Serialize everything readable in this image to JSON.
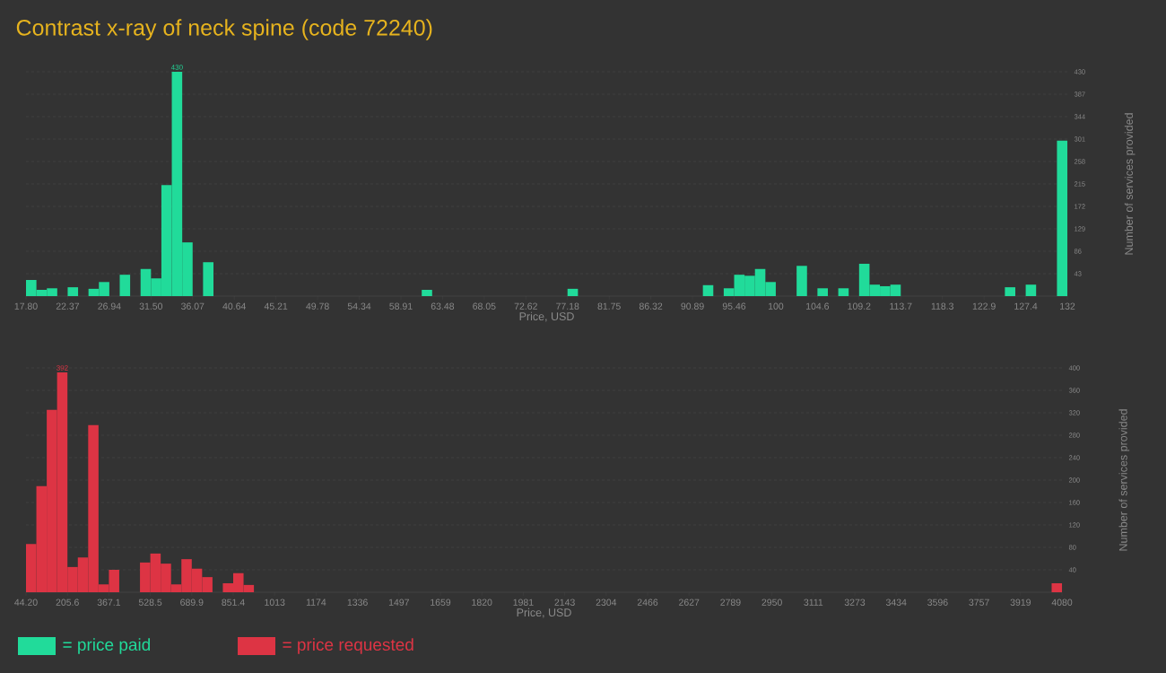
{
  "chart_data": [
    {
      "type": "histogram",
      "title": "Contrast x-ray of neck spine (code 72240)",
      "xlabel": "Price, USD",
      "ylabel": "Number of services provided",
      "bins": [
        17.8,
        18.942,
        20.084,
        21.226,
        22.368,
        23.51,
        24.652,
        25.794,
        26.936,
        28.078,
        29.22,
        30.362,
        31.504,
        32.646,
        33.788,
        34.93,
        36.072,
        37.214,
        38.356,
        39.498,
        40.64,
        41.782,
        42.924,
        44.066,
        45.208,
        46.35,
        47.492,
        48.634,
        49.776,
        50.918,
        52.06,
        53.202,
        54.344,
        55.486,
        56.628,
        57.77,
        58.912,
        60.054,
        61.196,
        62.338,
        63.48,
        64.622,
        65.764,
        66.906,
        68.048,
        69.19,
        70.332,
        71.474,
        72.616,
        73.758,
        74.9,
        76.042,
        77.184,
        78.326,
        79.468,
        80.61,
        81.752,
        82.894,
        84.036,
        85.178,
        86.32,
        87.462,
        88.604,
        89.746,
        90.888,
        92.03,
        93.172,
        94.314,
        95.456,
        96.598,
        97.74,
        98.882,
        100.024,
        101.166,
        102.308,
        103.45,
        104.592,
        105.734,
        106.876,
        108.018,
        109.16,
        110.302,
        111.444,
        112.586,
        113.728,
        114.87,
        116.012,
        117.154,
        118.296,
        119.438,
        120.58,
        121.722,
        122.864,
        124.006,
        125.148,
        126.29,
        127.432,
        128.574,
        129.716,
        130.858,
        132
      ],
      "series": [
        {
          "name": "= price paid",
          "color": "#21db9a",
          "values": [
            31,
            12,
            15,
            0,
            17,
            0,
            14,
            27,
            0,
            41,
            0,
            52,
            34,
            213,
            430,
            103,
            0,
            65,
            0,
            0,
            0,
            0,
            0,
            0,
            0,
            0,
            0,
            0,
            0,
            0,
            0,
            0,
            0,
            0,
            0,
            0,
            0,
            0,
            12,
            0,
            0,
            0,
            0,
            0,
            0,
            0,
            0,
            0,
            0,
            0,
            0,
            0,
            14,
            0,
            0,
            0,
            0,
            0,
            0,
            0,
            0,
            0,
            0,
            0,
            0,
            21,
            0,
            15,
            41,
            39,
            52,
            27,
            0,
            0,
            58,
            0,
            15,
            0,
            15,
            0,
            62,
            22,
            19,
            22,
            0,
            0,
            0,
            0,
            0,
            0,
            0,
            0,
            0,
            0,
            17,
            0,
            22,
            0,
            0,
            298
          ],
          "value_labels": [
            null,
            null,
            null,
            null,
            null,
            null,
            null,
            null,
            null,
            null,
            null,
            null,
            null,
            null,
            "430",
            null,
            null,
            null,
            null,
            null,
            null,
            null,
            null,
            null,
            null,
            null,
            null,
            null,
            null,
            null,
            null,
            null,
            null,
            null,
            null,
            null,
            null,
            null,
            null,
            null,
            null,
            null,
            null,
            null,
            null,
            null,
            null,
            null,
            null,
            null,
            null,
            null,
            null,
            null,
            null,
            null,
            null,
            null,
            null,
            null,
            null,
            null,
            null,
            null,
            null,
            null,
            null,
            null,
            null,
            null,
            null,
            null,
            null,
            null,
            null,
            null,
            null,
            null,
            null,
            null,
            null,
            null,
            null,
            null,
            null,
            null,
            null,
            null,
            null,
            null,
            null,
            null,
            null,
            null,
            null,
            null,
            null,
            null,
            null,
            null
          ]
        }
      ],
      "xlim": [
        17.8,
        132
      ],
      "xticks": [
        {
          "value": 17.8,
          "label": "17.80"
        },
        {
          "value": 22.368,
          "label": "22.37"
        },
        {
          "value": 26.936,
          "label": "26.94"
        },
        {
          "value": 31.504,
          "label": "31.50"
        },
        {
          "value": 36.072,
          "label": "36.07"
        },
        {
          "value": 40.64,
          "label": "40.64"
        },
        {
          "value": 45.208,
          "label": "45.21"
        },
        {
          "value": 49.776,
          "label": "49.78"
        },
        {
          "value": 54.344,
          "label": "54.34"
        },
        {
          "value": 58.912,
          "label": "58.91"
        },
        {
          "value": 63.48,
          "label": "63.48"
        },
        {
          "value": 68.048,
          "label": "68.05"
        },
        {
          "value": 72.616,
          "label": "72.62"
        },
        {
          "value": 77.184,
          "label": "77.18"
        },
        {
          "value": 81.752,
          "label": "81.75"
        },
        {
          "value": 86.32,
          "label": "86.32"
        },
        {
          "value": 90.888,
          "label": "90.89"
        },
        {
          "value": 95.456,
          "label": "95.46"
        },
        {
          "value": 100.024,
          "label": "100"
        },
        {
          "value": 104.592,
          "label": "104.6"
        },
        {
          "value": 109.16,
          "label": "109.2"
        },
        {
          "value": 113.728,
          "label": "113.7"
        },
        {
          "value": 118.296,
          "label": "118.3"
        },
        {
          "value": 122.864,
          "label": "122.9"
        },
        {
          "value": 127.432,
          "label": "127.4"
        },
        {
          "value": 132,
          "label": "132"
        }
      ],
      "ylim": [
        0,
        430
      ],
      "yticks": [
        43,
        86,
        129,
        172,
        215,
        258,
        301,
        344,
        387,
        430
      ],
      "grid": "y",
      "legend": "bottom"
    },
    {
      "type": "histogram",
      "xlabel": "Price, USD",
      "ylabel": "Number of services provided",
      "bins": [
        44.2,
        84.558,
        124.916,
        165.274,
        205.632,
        245.99,
        286.348,
        326.706,
        367.064,
        407.422,
        447.78,
        488.138,
        528.496,
        568.854,
        609.212,
        649.57,
        689.928,
        730.286,
        770.644,
        811.002,
        851.36,
        891.718,
        932.076,
        972.434,
        1012.792,
        1053.15,
        1093.508,
        1133.866,
        1174.224,
        1214.582,
        1254.94,
        1295.298,
        1335.656,
        1376.014,
        1416.372,
        1456.73,
        1497.088,
        1537.446,
        1577.804,
        1618.162,
        1658.52,
        1698.878,
        1739.236,
        1779.594,
        1819.952,
        1860.31,
        1900.668,
        1941.026,
        1981.384,
        2021.742,
        2062.1,
        2102.458,
        2142.816,
        2183.174,
        2223.532,
        2263.89,
        2304.248,
        2344.606,
        2384.964,
        2425.322,
        2465.68,
        2506.038,
        2546.396,
        2586.754,
        2627.112,
        2667.47,
        2707.828,
        2748.186,
        2788.544,
        2828.902,
        2869.26,
        2909.618,
        2949.976,
        2990.334,
        3030.692,
        3071.05,
        3111.408,
        3151.766,
        3192.124,
        3232.482,
        3272.84,
        3313.198,
        3353.556,
        3393.914,
        3434.272,
        3474.63,
        3514.988,
        3555.346,
        3595.704,
        3636.062,
        3676.42,
        3716.778,
        3757.136,
        3797.494,
        3837.852,
        3878.21,
        3918.568,
        3958.926,
        3999.284,
        4039.642,
        4080
      ],
      "series": [
        {
          "name": "= price requested",
          "color": "#dd3444",
          "values": [
            86,
            189,
            325,
            392,
            45,
            62,
            298,
            14,
            40,
            0,
            0,
            53,
            69,
            51,
            14,
            59,
            42,
            27,
            0,
            16,
            34,
            13,
            0,
            0,
            0,
            0,
            0,
            0,
            0,
            0,
            0,
            0,
            0,
            0,
            0,
            0,
            0,
            0,
            0,
            0,
            0,
            0,
            0,
            0,
            0,
            0,
            0,
            0,
            0,
            0,
            0,
            0,
            0,
            0,
            0,
            0,
            0,
            0,
            0,
            0,
            0,
            0,
            0,
            0,
            0,
            0,
            0,
            0,
            0,
            0,
            0,
            0,
            0,
            0,
            0,
            0,
            0,
            0,
            0,
            0,
            0,
            0,
            0,
            0,
            0,
            0,
            0,
            0,
            0,
            0,
            0,
            0,
            0,
            0,
            0,
            0,
            0,
            0,
            0,
            16
          ],
          "value_labels": [
            null,
            null,
            null,
            "392",
            null,
            null,
            null,
            null,
            null,
            null,
            null,
            null,
            null,
            null,
            null,
            null,
            null,
            null,
            null,
            null,
            null,
            null,
            null,
            null,
            null,
            null,
            null,
            null,
            null,
            null,
            null,
            null,
            null,
            null,
            null,
            null,
            null,
            null,
            null,
            null,
            null,
            null,
            null,
            null,
            null,
            null,
            null,
            null,
            null,
            null,
            null,
            null,
            null,
            null,
            null,
            null,
            null,
            null,
            null,
            null,
            null,
            null,
            null,
            null,
            null,
            null,
            null,
            null,
            null,
            null,
            null,
            null,
            null,
            null,
            null,
            null,
            null,
            null,
            null,
            null,
            null,
            null,
            null,
            null,
            null,
            null,
            null,
            null,
            null,
            null,
            null,
            null,
            null,
            null,
            null,
            null,
            null,
            null,
            null,
            null
          ]
        }
      ],
      "xlim": [
        44.2,
        4080
      ],
      "xticks": [
        {
          "value": 44.2,
          "label": "44.20"
        },
        {
          "value": 205.632,
          "label": "205.6"
        },
        {
          "value": 367.064,
          "label": "367.1"
        },
        {
          "value": 528.496,
          "label": "528.5"
        },
        {
          "value": 689.928,
          "label": "689.9"
        },
        {
          "value": 851.36,
          "label": "851.4"
        },
        {
          "value": 1012.792,
          "label": "1013"
        },
        {
          "value": 1174.224,
          "label": "1174"
        },
        {
          "value": 1335.656,
          "label": "1336"
        },
        {
          "value": 1497.088,
          "label": "1497"
        },
        {
          "value": 1658.52,
          "label": "1659"
        },
        {
          "value": 1819.952,
          "label": "1820"
        },
        {
          "value": 1981.384,
          "label": "1981"
        },
        {
          "value": 2142.816,
          "label": "2143"
        },
        {
          "value": 2304.248,
          "label": "2304"
        },
        {
          "value": 2465.68,
          "label": "2466"
        },
        {
          "value": 2627.112,
          "label": "2627"
        },
        {
          "value": 2788.544,
          "label": "2789"
        },
        {
          "value": 2949.976,
          "label": "2950"
        },
        {
          "value": 3111.408,
          "label": "3111"
        },
        {
          "value": 3272.84,
          "label": "3273"
        },
        {
          "value": 3434.272,
          "label": "3434"
        },
        {
          "value": 3595.704,
          "label": "3596"
        },
        {
          "value": 3757.136,
          "label": "3757"
        },
        {
          "value": 3918.568,
          "label": "3919"
        },
        {
          "value": 4080,
          "label": "4080"
        }
      ],
      "ylim": [
        0,
        400
      ],
      "yticks": [
        40,
        80,
        120,
        160,
        200,
        240,
        280,
        320,
        360,
        400
      ],
      "grid": "y",
      "legend": "bottom"
    }
  ]
}
